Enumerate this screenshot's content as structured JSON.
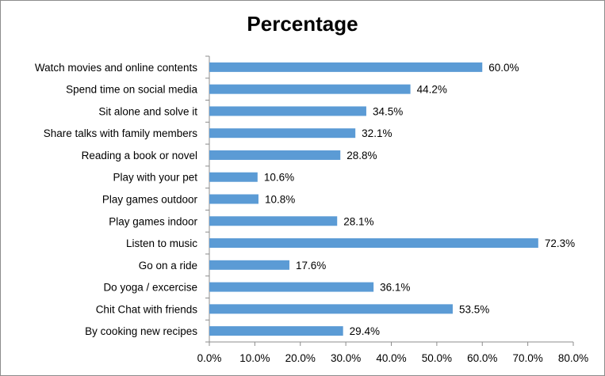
{
  "chart_data": {
    "type": "bar",
    "orientation": "horizontal",
    "title": "Percentage",
    "categories": [
      "Watch movies and online contents",
      "Spend time on social media",
      "Sit alone and solve it",
      "Share talks with family members",
      "Reading a book or novel",
      "Play with your pet",
      "Play games outdoor",
      "Play games indoor",
      "Listen to music",
      "Go on a ride",
      "Do yoga / excercise",
      "Chit Chat with friends",
      "By cooking new recipes"
    ],
    "values": [
      60.0,
      44.2,
      34.5,
      32.1,
      28.8,
      10.6,
      10.8,
      28.1,
      72.3,
      17.6,
      36.1,
      53.5,
      29.4
    ],
    "value_labels": [
      "60.0%",
      "44.2%",
      "34.5%",
      "32.1%",
      "28.8%",
      "10.6%",
      "10.8%",
      "28.1%",
      "72.3%",
      "17.6%",
      "36.1%",
      "53.5%",
      "29.4%"
    ],
    "xlim": [
      0,
      80
    ],
    "xticks": [
      "0.0%",
      "10.0%",
      "20.0%",
      "30.0%",
      "40.0%",
      "50.0%",
      "60.0%",
      "70.0%",
      "80.0%"
    ],
    "grid": false,
    "legend": "none",
    "bar_color": "#5b9bd5"
  }
}
